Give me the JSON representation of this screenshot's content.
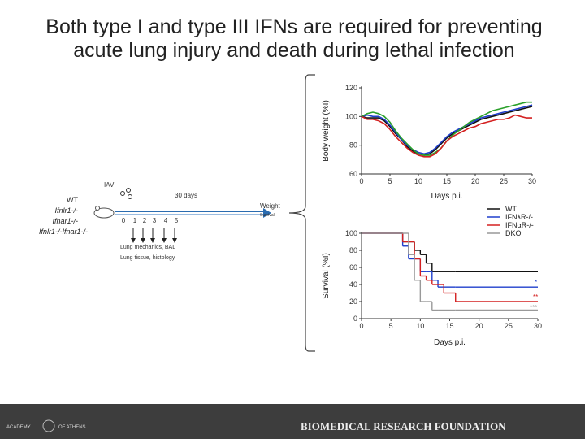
{
  "slide": {
    "title_lines": [
      "Both type I and type III IFNs are required for preventing",
      "acute lung injury and death during lethal infection"
    ]
  },
  "diagram": {
    "virus": "IAV",
    "duration": "30 days",
    "genotypes": [
      "WT",
      "Ifnlr1-/-",
      "Ifnar1-/-",
      "Ifnlr1-/-Ifnar1-/-"
    ],
    "readout": "Weight",
    "readout_sub": "Survival",
    "timepoints": [
      "0",
      "1",
      "2",
      "3",
      "4",
      "5"
    ],
    "assays": [
      "Lung mechanics, BAL",
      "Lung tissue, histology"
    ]
  },
  "footer": {
    "left_top": "ACADEMY",
    "left_right": "OF ATHENS",
    "right": "BIOMEDICAL RESEARCH FOUNDATION"
  },
  "chart_data": [
    {
      "type": "line",
      "y_label": "Body weight (%I)",
      "x_label": "Days p.i.",
      "x": [
        0,
        1,
        2,
        3,
        4,
        5,
        6,
        7,
        8,
        9,
        10,
        11,
        12,
        13,
        14,
        15,
        16,
        17,
        18,
        19,
        20,
        21,
        22,
        23,
        24,
        25,
        26,
        27,
        28,
        29,
        30
      ],
      "xlim": [
        0,
        30
      ],
      "xticks": [
        0,
        5,
        10,
        15,
        20,
        25,
        30
      ],
      "ylim": [
        60,
        120
      ],
      "yticks": [
        60,
        80,
        100,
        120
      ],
      "series": [
        {
          "color": "#111111",
          "values": [
            100,
            99,
            99,
            99,
            97,
            93,
            88,
            84,
            79,
            76,
            74,
            73,
            74,
            77,
            81,
            85,
            88,
            90,
            92,
            94,
            96,
            98,
            99,
            100,
            101,
            102,
            103,
            104,
            105,
            106,
            107
          ]
        },
        {
          "color": "#1f3fcc",
          "values": [
            100,
            101,
            100,
            100,
            98,
            94,
            89,
            84,
            80,
            77,
            75,
            74,
            75,
            78,
            82,
            86,
            89,
            91,
            93,
            95,
            97,
            99,
            100,
            101,
            102,
            103,
            104,
            105,
            106,
            107,
            108
          ]
        },
        {
          "color": "#2aa02a",
          "values": [
            100,
            102,
            103,
            102,
            100,
            96,
            90,
            85,
            81,
            77,
            74,
            73,
            73,
            75,
            78,
            83,
            87,
            90,
            93,
            96,
            98,
            100,
            102,
            104,
            105,
            106,
            107,
            108,
            109,
            110,
            110
          ]
        },
        {
          "color": "#d42020",
          "values": [
            100,
            98,
            98,
            97,
            95,
            91,
            86,
            82,
            78,
            75,
            73,
            72,
            72,
            74,
            78,
            83,
            86,
            88,
            90,
            92,
            93,
            95,
            96,
            97,
            98,
            98,
            99,
            101,
            100,
            99,
            99
          ]
        }
      ]
    },
    {
      "type": "step",
      "y_label": "Survival (%I)",
      "x_label": "Days p.i.",
      "x": [
        0,
        7,
        8,
        9,
        10,
        11,
        12,
        13,
        14,
        16,
        30
      ],
      "xlim": [
        0,
        30
      ],
      "xticks": [
        0,
        5,
        10,
        15,
        20,
        25,
        30
      ],
      "ylim": [
        0,
        100
      ],
      "yticks": [
        0,
        20,
        40,
        60,
        80,
        100
      ],
      "series": [
        {
          "name": "WT",
          "color": "#111111",
          "values": [
            100,
            90,
            90,
            80,
            75,
            65,
            55,
            55,
            55,
            55,
            55
          ]
        },
        {
          "name": "IFNλR-/-",
          "color": "#1f3fcc",
          "values": [
            100,
            85,
            70,
            70,
            55,
            55,
            45,
            37,
            37,
            37,
            37
          ]
        },
        {
          "name": "IFNαR-/-",
          "color": "#d42020",
          "values": [
            100,
            90,
            90,
            70,
            50,
            45,
            40,
            40,
            30,
            20,
            20
          ]
        },
        {
          "name": "DKO",
          "color": "#999999",
          "values": [
            100,
            100,
            75,
            45,
            20,
            20,
            10,
            10,
            10,
            10,
            10
          ]
        }
      ],
      "annotations": [
        "*",
        "**",
        "***"
      ]
    }
  ]
}
